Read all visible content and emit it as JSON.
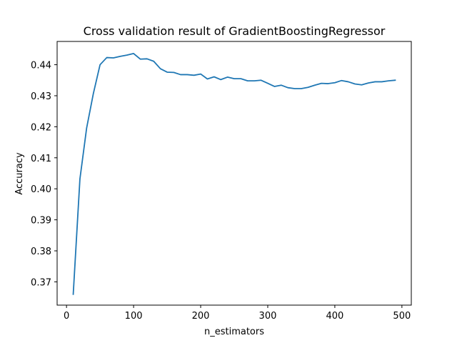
{
  "chart_data": {
    "type": "line",
    "title": "Cross validation result of GradientBoostingRegressor",
    "xlabel": "n_estimators",
    "ylabel": "Accuracy",
    "xlim": [
      -14,
      514
    ],
    "ylim": [
      0.3625,
      0.4475
    ],
    "xticks": [
      0,
      100,
      200,
      300,
      400,
      500
    ],
    "yticks": [
      0.37,
      0.38,
      0.39,
      0.4,
      0.41,
      0.42,
      0.43,
      0.44
    ],
    "xtick_labels": [
      "0",
      "100",
      "200",
      "300",
      "400",
      "500"
    ],
    "ytick_labels": [
      "0.37",
      "0.38",
      "0.39",
      "0.40",
      "0.41",
      "0.42",
      "0.43",
      "0.44"
    ],
    "grid": false,
    "series": [
      {
        "color": "#1f77b4",
        "x": [
          10,
          20,
          30,
          40,
          50,
          60,
          70,
          80,
          90,
          100,
          110,
          120,
          130,
          140,
          150,
          160,
          170,
          180,
          190,
          200,
          210,
          220,
          230,
          240,
          250,
          260,
          270,
          280,
          290,
          300,
          310,
          320,
          330,
          340,
          350,
          360,
          370,
          380,
          390,
          400,
          410,
          420,
          430,
          440,
          450,
          460,
          470,
          480,
          490
        ],
        "y": [
          0.366,
          0.4032,
          0.4196,
          0.4307,
          0.44,
          0.4423,
          0.4422,
          0.4427,
          0.4431,
          0.4436,
          0.4418,
          0.4419,
          0.4411,
          0.4387,
          0.4376,
          0.4375,
          0.4368,
          0.4368,
          0.4366,
          0.437,
          0.4354,
          0.4361,
          0.4352,
          0.436,
          0.4355,
          0.4355,
          0.4348,
          0.4348,
          0.435,
          0.434,
          0.433,
          0.4334,
          0.4326,
          0.4323,
          0.4323,
          0.4327,
          0.4334,
          0.434,
          0.4339,
          0.4342,
          0.4349,
          0.4345,
          0.4338,
          0.4335,
          0.4341,
          0.4345,
          0.4345,
          0.4348,
          0.435
        ]
      }
    ]
  }
}
